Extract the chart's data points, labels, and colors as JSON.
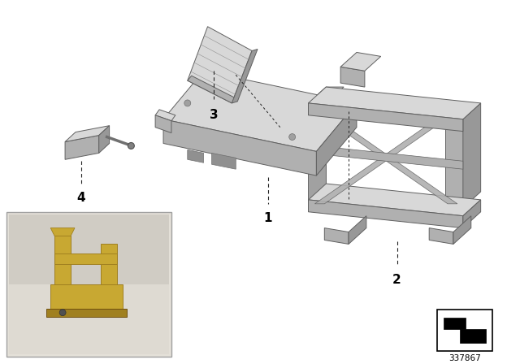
{
  "background_color": "#ffffff",
  "part_number": "337867",
  "gray1": "#c8c8c8",
  "gray2": "#b0b0b0",
  "gray3": "#989898",
  "gray4": "#d8d8d8",
  "gray5": "#e8e8e8",
  "gold1": "#c8a832",
  "gold2": "#a08020",
  "photo_bg": "#d8d4cc",
  "photo_bg2": "#e4e0d8",
  "figsize": [
    6.4,
    4.48
  ],
  "dpi": 100
}
